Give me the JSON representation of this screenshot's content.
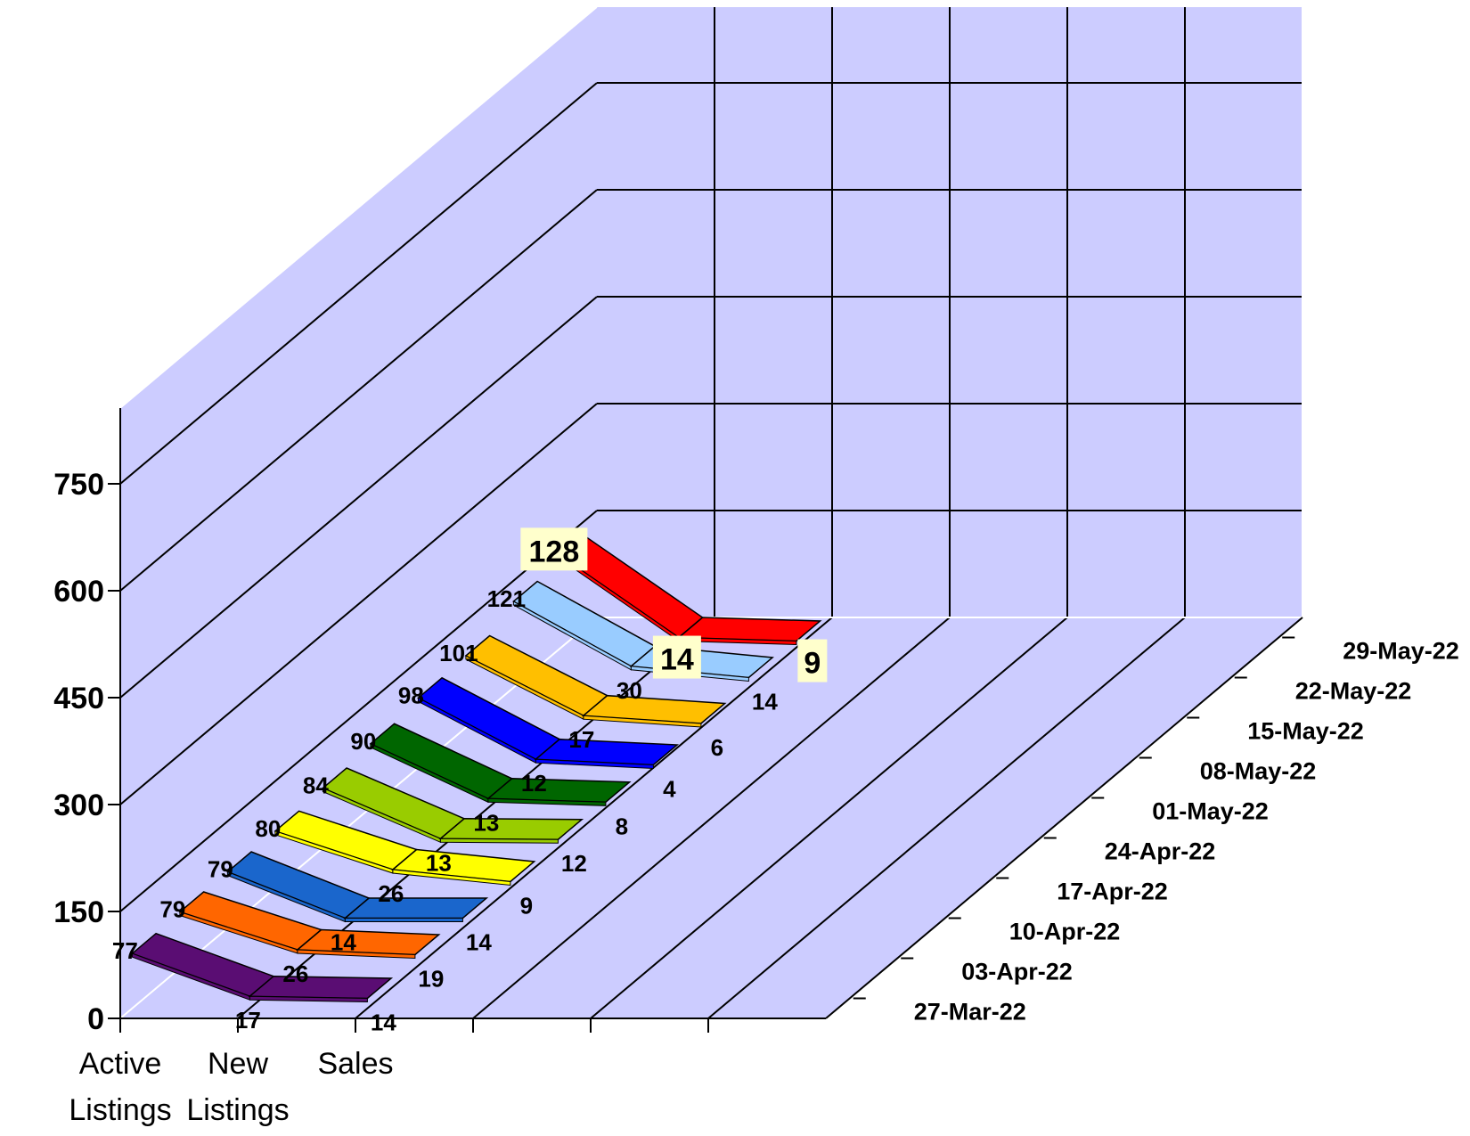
{
  "chart_data": {
    "type": "line",
    "style": "3d-ribbon",
    "categories": [
      "Active Listings",
      "New Listings",
      "Sales"
    ],
    "category_label_lines": [
      [
        "Active",
        "Listings"
      ],
      [
        "New",
        "Listings"
      ],
      [
        "Sales"
      ]
    ],
    "yticks": [
      "0",
      "150",
      "300",
      "450",
      "600",
      "750"
    ],
    "ylim": [
      0,
      750
    ],
    "grid": true,
    "series": [
      {
        "name": "27-Mar-22",
        "values": [
          77,
          17,
          14
        ],
        "color": "#5a0d73"
      },
      {
        "name": "03-Apr-22",
        "values": [
          79,
          26,
          19
        ],
        "color": "#ff6600"
      },
      {
        "name": "10-Apr-22",
        "values": [
          79,
          14,
          14
        ],
        "color": "#1a66cc"
      },
      {
        "name": "17-Apr-22",
        "values": [
          80,
          26,
          9
        ],
        "color": "#ffff00"
      },
      {
        "name": "24-Apr-22",
        "values": [
          84,
          13,
          12
        ],
        "color": "#99cc00"
      },
      {
        "name": "01-May-22",
        "values": [
          90,
          13,
          8
        ],
        "color": "#006600"
      },
      {
        "name": "08-May-22",
        "values": [
          98,
          12,
          4
        ],
        "color": "#0000ff"
      },
      {
        "name": "15-May-22",
        "values": [
          101,
          17,
          6
        ],
        "color": "#ffbf00"
      },
      {
        "name": "22-May-22",
        "values": [
          121,
          30,
          14
        ],
        "color": "#99ccff"
      },
      {
        "name": "29-May-22",
        "values": [
          128,
          14,
          9
        ],
        "color": "#ff0000",
        "highlight": true
      }
    ],
    "colors": {
      "wall": "#ccccff",
      "floor": "#ccccff",
      "highlight_label_bg": "#ffffcc"
    }
  }
}
